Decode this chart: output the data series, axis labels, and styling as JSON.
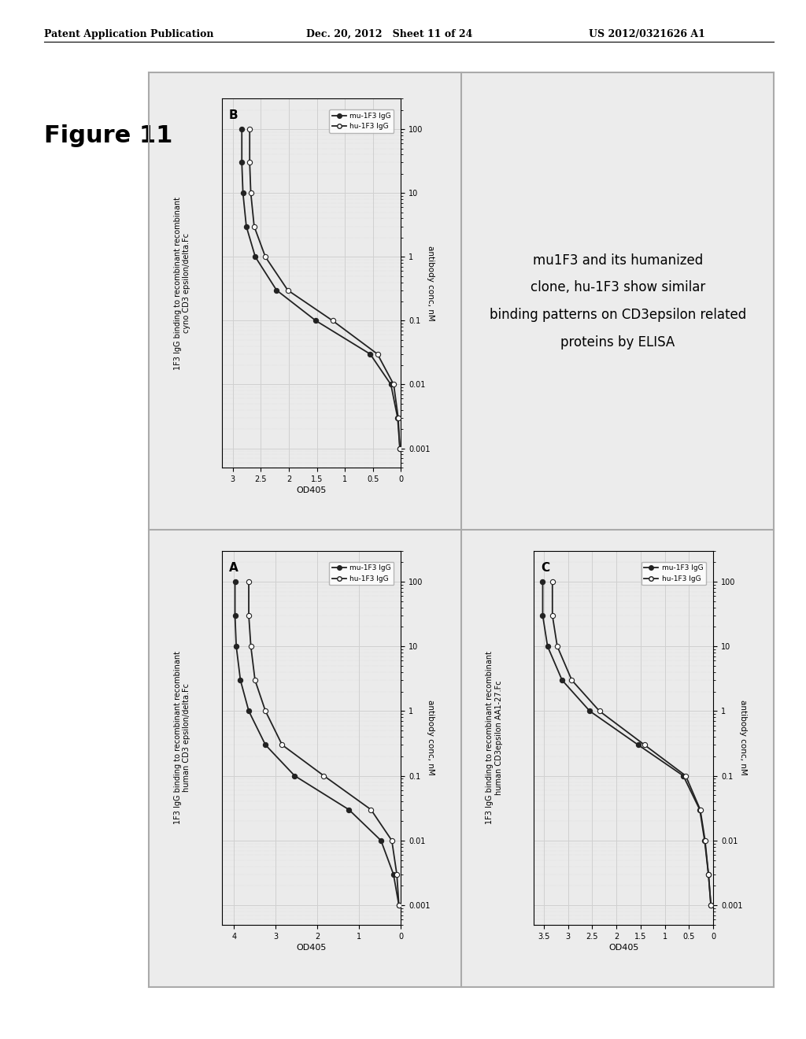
{
  "header_left": "Patent Application Publication",
  "header_mid": "Dec. 20, 2012   Sheet 11 of 24",
  "header_right": "US 2012/0321626 A1",
  "figure_label": "Figure 11",
  "panel_A": {
    "label": "A",
    "title_line1": "1F3 IgG binding to recombinant recombinant",
    "title_line2": "human CD3 epsilon/delta.Fc",
    "xlabel": "antibody conc, nM",
    "ylabel": "OD405",
    "xtick_vals": [
      0.001,
      0.01,
      0.1,
      1,
      10,
      100
    ],
    "xticklabels": [
      "0.001",
      "0.01",
      "0.1",
      "1",
      "10",
      "100"
    ],
    "yticks": [
      0,
      1,
      2,
      3,
      4
    ],
    "yticklabels": [
      "0",
      "1",
      "2",
      "3",
      "4"
    ],
    "xlim_log": [
      -3,
      2
    ],
    "ylim": [
      0,
      4.3
    ],
    "series": [
      {
        "name": "mu-1F3 IgG",
        "filled": true,
        "x": [
          0.001,
          0.003,
          0.01,
          0.03,
          0.1,
          0.3,
          1,
          3,
          10,
          30,
          100
        ],
        "y": [
          0.05,
          0.18,
          0.48,
          1.25,
          2.55,
          3.25,
          3.65,
          3.85,
          3.95,
          3.98,
          3.98
        ]
      },
      {
        "name": "hu-1F3 IgG",
        "filled": false,
        "x": [
          0.001,
          0.003,
          0.01,
          0.03,
          0.1,
          0.3,
          1,
          3,
          10,
          30,
          100
        ],
        "y": [
          0.05,
          0.1,
          0.22,
          0.72,
          1.85,
          2.85,
          3.25,
          3.5,
          3.6,
          3.65,
          3.65
        ]
      }
    ]
  },
  "panel_B": {
    "label": "B",
    "title_line1": "1F3 IgG binding to recombinant recombinant",
    "title_line2": "cyno CD3 epsilon/delta.Fc",
    "xlabel": "antibody conc, nM",
    "ylabel": "OD405",
    "xtick_vals": [
      0.001,
      0.01,
      0.1,
      1,
      10,
      100
    ],
    "xticklabels": [
      "0.001",
      "0.01",
      "0.1",
      "1",
      "10",
      "100"
    ],
    "yticks": [
      0,
      0.5,
      1,
      1.5,
      2,
      2.5,
      3
    ],
    "yticklabels": [
      "0",
      "0.5",
      "1",
      "1.5",
      "2",
      "2.5",
      "3"
    ],
    "xlim_log": [
      -3,
      2
    ],
    "ylim": [
      0,
      3.2
    ],
    "series": [
      {
        "name": "mu-1F3 IgG",
        "filled": true,
        "x": [
          0.001,
          0.003,
          0.01,
          0.03,
          0.1,
          0.3,
          1,
          3,
          10,
          30,
          100
        ],
        "y": [
          0.02,
          0.06,
          0.18,
          0.55,
          1.52,
          2.22,
          2.6,
          2.76,
          2.82,
          2.84,
          2.84
        ]
      },
      {
        "name": "hu-1F3 IgG",
        "filled": false,
        "x": [
          0.001,
          0.003,
          0.01,
          0.03,
          0.1,
          0.3,
          1,
          3,
          10,
          30,
          100
        ],
        "y": [
          0.02,
          0.05,
          0.13,
          0.42,
          1.22,
          2.02,
          2.42,
          2.62,
          2.68,
          2.7,
          2.7
        ]
      }
    ]
  },
  "panel_C": {
    "label": "C",
    "title_line1": "1F3 IgG binding to recombinant recombinant",
    "title_line2": "human CD3epsilon AA1-27.Fc",
    "xlabel": "antibody conc, nM",
    "ylabel": "OD405",
    "xtick_vals": [
      0.001,
      0.01,
      0.1,
      1,
      10,
      100
    ],
    "xticklabels": [
      "0.001",
      "0.01",
      "0.1",
      "1",
      "10",
      "100"
    ],
    "yticks": [
      0,
      0.5,
      1,
      1.5,
      2,
      2.5,
      3,
      3.5
    ],
    "yticklabels": [
      "0",
      "0.5",
      "1",
      "1.5",
      "2",
      "2.5",
      "3",
      "3.5"
    ],
    "xlim_log": [
      -3,
      2
    ],
    "ylim": [
      0,
      3.7
    ],
    "series": [
      {
        "name": "mu-1F3 IgG",
        "filled": true,
        "x": [
          0.001,
          0.003,
          0.01,
          0.03,
          0.1,
          0.3,
          1,
          3,
          10,
          30,
          100
        ],
        "y": [
          0.05,
          0.1,
          0.18,
          0.28,
          0.62,
          1.55,
          2.55,
          3.12,
          3.42,
          3.52,
          3.52
        ]
      },
      {
        "name": "hu-1F3 IgG",
        "filled": false,
        "x": [
          0.001,
          0.003,
          0.01,
          0.03,
          0.1,
          0.3,
          1,
          3,
          10,
          30,
          100
        ],
        "y": [
          0.05,
          0.1,
          0.17,
          0.27,
          0.57,
          1.42,
          2.35,
          2.92,
          3.22,
          3.32,
          3.32
        ]
      }
    ]
  },
  "panel_D_text": [
    "mu1F3 and its humanized",
    "clone, hu-1F3 show similar",
    "binding patterns on CD3epsilon related",
    "proteins by ELISA"
  ],
  "bg_panel_color": "#ececec",
  "plot_bg_color": "#ebebeb",
  "grid_color": "#d0d0d0",
  "outer_border_color": "#aaaaaa",
  "line_color": "#222222"
}
